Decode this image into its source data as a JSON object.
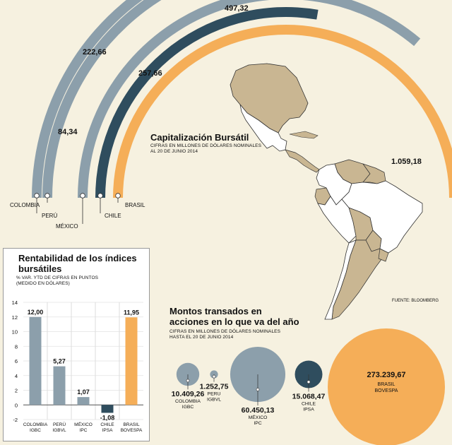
{
  "colors": {
    "gray": "#8c9fab",
    "dark": "#2f4d5e",
    "orange": "#f5ae58",
    "map_land": "#c9b692",
    "map_focus": "#ffffff",
    "map_line": "#333333",
    "background": "#f6f1e0"
  },
  "cap": {
    "title": "Capitalización Bursátil",
    "subtitle1": "CIFRAS EN MILLONES DE DÓLARES NOMINALES",
    "subtitle2": "AL 20 DE JUNIO 2014"
  },
  "source": "FUENTE: BLOOMBERG",
  "rent": {
    "title1": "Rentabilidad de los índices",
    "title2": "bursátiles",
    "subtitle1": "% VAR. YTD  DE CIFRAS EN PUNTOS",
    "subtitle2": "(MEDIDO EN DÓLARES)"
  },
  "montos": {
    "title1": "Montos transados en",
    "title2": "acciones en lo que va del año",
    "subtitle1": "CIFRAS EN MILLONES DE DÓLARES NOMINALES",
    "subtitle2": "HASTA EL 20 DE JUNIO 2014"
  },
  "chart_data": [
    {
      "type": "bar",
      "chart": "capitalizacion-bursatil",
      "title": "Capitalización Bursátil",
      "categories": [
        "COLOMBIA",
        "PERÚ",
        "MÉXICO",
        "CHILE",
        "BRASIL"
      ],
      "values": [
        222.66,
        84.34,
        497.32,
        257.66,
        1059.18
      ],
      "value_labels": [
        "222,66",
        "84,34",
        "497,32",
        "257,66",
        "1.059,18"
      ]
    },
    {
      "type": "bar",
      "chart": "rentabilidad-indices",
      "title": "Rentabilidad de los índices bursátiles",
      "categories": [
        [
          "COLOMBIA",
          "IGBC"
        ],
        [
          "PERÚ",
          "IGBVL"
        ],
        [
          "MÉXICO",
          "IPC"
        ],
        [
          "CHILE",
          "IPSA"
        ],
        [
          "BRASIL",
          "BOVESPA"
        ]
      ],
      "values": [
        12.0,
        5.27,
        1.07,
        -1.08,
        11.95
      ],
      "value_labels": [
        "12,00",
        "5,27",
        "1,07",
        "-1,08",
        "11,95"
      ],
      "ylim": [
        -2,
        14
      ],
      "yticks": [
        "-2",
        "0",
        "2",
        "4",
        "6",
        "8",
        "10",
        "12",
        "14"
      ],
      "grid": true
    },
    {
      "type": "bubble",
      "chart": "montos-transados",
      "title": "Montos transados en acciones en lo que va del año",
      "categories": [
        [
          "COLOMBIA",
          "IGBC"
        ],
        [
          "PERU",
          "IGBVL"
        ],
        [
          "MÉXICO",
          "IPC"
        ],
        [
          "CHILE",
          "IPSA"
        ],
        [
          "BRASIL",
          "BOVESPA"
        ]
      ],
      "values": [
        10409.26,
        1252.75,
        60450.13,
        15068.47,
        273239.67
      ],
      "value_labels": [
        "10.409,26",
        "1.252,75",
        "60.450,13",
        "15.068,47",
        "273.239,67"
      ]
    }
  ]
}
